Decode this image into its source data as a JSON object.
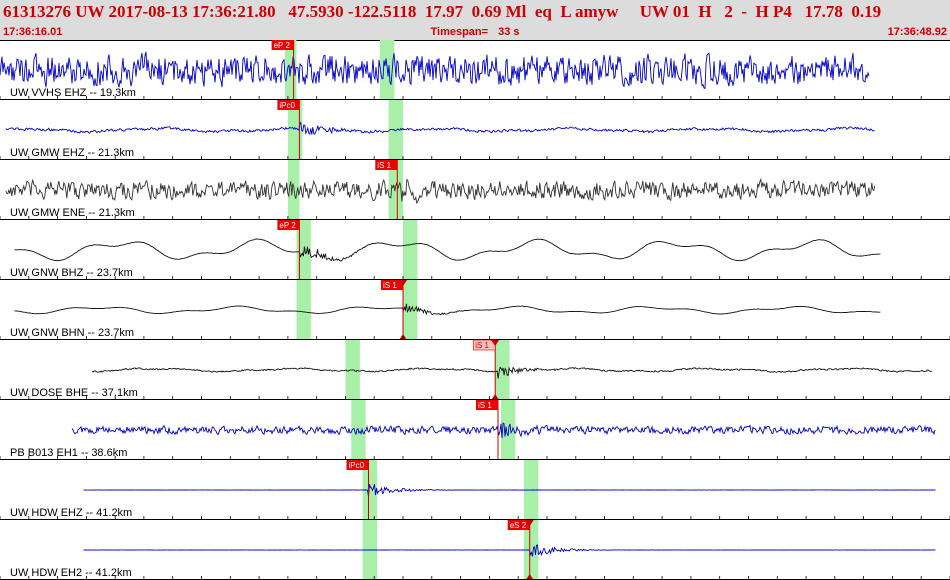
{
  "header": {
    "line1": "61313276 UW 2017-08-13 17:36:21.80   47.5930 -122.5118  17.97  0.69 Ml  eq  L amyw     UW 01  H   2  -  H P4   17.78  0.19",
    "start_time": "17:36:16.01",
    "timespan_label": "Timespan=",
    "timespan_value": "33 s",
    "end_time": "17:36:48.92"
  },
  "colors": {
    "blue_trace": "#0000cc",
    "dark_trace": "#333333",
    "black_trace": "#111111",
    "pick": "#cc0000",
    "pick_label_bg": "#ee0000",
    "pick_label_bg_light": "#ffc0c0",
    "window": "#a8f0a8"
  },
  "chart_data": {
    "type": "line",
    "title": "",
    "xlabel": "",
    "ylabel": "",
    "x_range_s": [
      0,
      33
    ],
    "grid": false,
    "channels": [
      {
        "label": "UW VVHS EHZ -- 19.3km",
        "color": "blue_trace",
        "start_s": 0.0,
        "end_s": 30.2,
        "amp": 0.95,
        "noise": 0.85,
        "low_freq": 0,
        "event_amp": 0.45,
        "picks": [
          {
            "label": "eP 2",
            "t_s": 10.2,
            "style": "dark",
            "arrow": false
          }
        ],
        "windows": [
          [
            9.9,
            10.3
          ],
          [
            13.2,
            13.7
          ]
        ]
      },
      {
        "label": "UW GMW EHZ -- 21.3km",
        "color": "blue_trace",
        "start_s": 0.2,
        "end_s": 30.4,
        "amp": 0.35,
        "noise": 0.2,
        "low_freq": 0.25,
        "event_amp": 0.9,
        "picks": [
          {
            "label": "iPc0",
            "t_s": 10.4,
            "style": "dark",
            "arrow": false
          }
        ],
        "windows": [
          [
            10.0,
            10.5
          ],
          [
            13.5,
            14.0
          ]
        ]
      },
      {
        "label": "UW GMW ENE -- 21.3km",
        "color": "dark_trace",
        "start_s": 0.2,
        "end_s": 30.4,
        "amp": 0.55,
        "noise": 0.85,
        "low_freq": 0,
        "event_amp": 0.4,
        "picks": [
          {
            "label": "iS 1",
            "t_s": 13.8,
            "style": "dark",
            "arrow": false
          }
        ],
        "windows": [
          [
            10.0,
            10.4
          ],
          [
            13.5,
            14.0
          ]
        ]
      },
      {
        "label": "UW GNW BHZ -- 23.7km",
        "color": "black_trace",
        "start_s": 0.5,
        "end_s": 30.6,
        "amp": 0.55,
        "noise": 0.02,
        "low_freq": 0.9,
        "event_amp": 0.55,
        "picks": [
          {
            "label": "eP 2",
            "t_s": 10.4,
            "style": "dark",
            "arrow": false
          }
        ],
        "windows": [
          [
            10.3,
            10.8
          ],
          [
            14.0,
            14.5
          ]
        ]
      },
      {
        "label": "UW GNW BHN -- 23.7km",
        "color": "black_trace",
        "start_s": 0.5,
        "end_s": 30.6,
        "amp": 0.3,
        "noise": 0.02,
        "low_freq": 0.6,
        "event_amp": 0.6,
        "picks": [
          {
            "label": "iS 1",
            "t_s": 14.0,
            "style": "dark",
            "arrow": true
          }
        ],
        "windows": [
          [
            10.3,
            10.8
          ],
          [
            14.0,
            14.5
          ]
        ]
      },
      {
        "label": "UW DOSE BHE -- 37.1km",
        "color": "black_trace",
        "start_s": 3.2,
        "end_s": 32.4,
        "amp": 0.35,
        "noise": 0.12,
        "low_freq": 0.25,
        "event_amp": 0.6,
        "picks": [
          {
            "label": "iS 1",
            "t_s": 17.2,
            "style": "light",
            "arrow": true
          }
        ],
        "windows": [
          [
            12.0,
            12.5
          ],
          [
            17.2,
            17.7
          ]
        ]
      },
      {
        "label": "PB B013 EH1 -- 38.6km",
        "color": "blue_trace",
        "start_s": 2.5,
        "end_s": 32.5,
        "amp": 0.45,
        "noise": 0.45,
        "low_freq": 0,
        "event_amp": 0.6,
        "picks": [
          {
            "label": "iS 1",
            "t_s": 17.3,
            "style": "dark",
            "arrow": false
          }
        ],
        "windows": [
          [
            12.2,
            12.7
          ],
          [
            17.4,
            17.9
          ]
        ]
      },
      {
        "label": "UW HDW EHZ -- 41.2km",
        "color": "blue_trace",
        "start_s": 2.9,
        "end_s": 32.5,
        "amp": 0.3,
        "noise": 0.02,
        "low_freq": 0,
        "event_amp": 0.8,
        "picks": [
          {
            "label": "iPc0",
            "t_s": 12.8,
            "style": "dark",
            "arrow": false
          }
        ],
        "windows": [
          [
            12.6,
            13.1
          ],
          [
            18.2,
            18.7
          ]
        ]
      },
      {
        "label": "UW HDW EH2 -- 41.2km",
        "color": "blue_trace",
        "start_s": 2.9,
        "end_s": 32.5,
        "amp": 0.25,
        "noise": 0.02,
        "low_freq": 0,
        "event_amp": 1.0,
        "picks": [
          {
            "label": "eS 2",
            "t_s": 18.4,
            "style": "dark",
            "arrow": true
          }
        ],
        "windows": [
          [
            12.6,
            13.1
          ],
          [
            18.2,
            18.7
          ]
        ]
      }
    ]
  }
}
